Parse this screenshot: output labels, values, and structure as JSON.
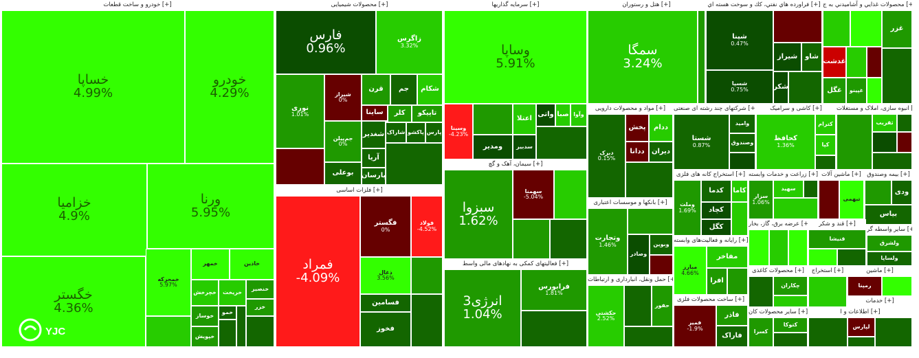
{
  "colors": {
    "bright_green": "#33ff00",
    "green": "#27cc00",
    "mid_green": "#1f9900",
    "dark_green": "#136600",
    "darkest_green": "#0b4d00",
    "red": "#ff1a1a",
    "dark_red": "#660000"
  },
  "sectors": [
    {
      "title": "خودرو و ساخت قطعات [+]"
    },
    {
      "title": "محصولات شیمیایی [+]"
    },
    {
      "title": "سرمایه گذاریها [+]"
    },
    {
      "title": "هتل و رستوران [+]"
    },
    {
      "title": "فراورده هاي نفتي، كك و سوخت هسته اي [+]"
    },
    {
      "title": "محصولات غذايي و آشاميدني به ج [+]"
    },
    {
      "title": "فلزات اساسی [+]"
    },
    {
      "title": "سیمان، آهک و گچ [+]"
    },
    {
      "title": "فعالیتهای کمکی به نهادهای مالی واسط [+]"
    },
    {
      "title": "مواد و محصولات دارویی [+]"
    },
    {
      "title": "شرکتهای چند رشته ای صنعتی [+]"
    },
    {
      "title": "کاشی و سرامیک [+]"
    },
    {
      "title": "انبوه سازی، املاک و مستغلات [+]"
    },
    {
      "title": "بانکها و موسسات اعتباری [+]"
    },
    {
      "title": "استخراج کانه های فلزی [+]"
    },
    {
      "title": "زراعت و خدمات وابسته [+]"
    },
    {
      "title": "ماشین آلات [+]"
    },
    {
      "title": "بیمه وصندوق [+]"
    },
    {
      "title": "رایانه و فعالیت‌های وابسته [+]"
    },
    {
      "title": "عرضه برق، گاز، بخار [+]"
    },
    {
      "title": "قند و شکر [+]"
    },
    {
      "title": "سایر واسطه گر [+]"
    },
    {
      "title": "محصولات کاغذی [+]"
    },
    {
      "title": "استخراج [+]"
    },
    {
      "title": "ماشین [+]"
    },
    {
      "title": "خدمات [+]"
    },
    {
      "title": "حمل ونقل، انبارداری و ارتباطات [+]"
    },
    {
      "title": "ساخت محصولات فلزی [+]"
    },
    {
      "title": "سایر محصولات کان [+]"
    },
    {
      "title": "اطلاعات و ا [+]"
    }
  ],
  "tiles": {
    "khasapa": {
      "name": "خساپا",
      "pct": "4.99%"
    },
    "khodro": {
      "name": "خودرو",
      "pct": "4.29%"
    },
    "khazamia": {
      "name": "خزامیا",
      "pct": "4.9%"
    },
    "varana": {
      "name": "ورنا",
      "pct": "5.95%"
    },
    "khgostar": {
      "name": "خگستر",
      "pct": "4.36%"
    },
    "khamehrka": {
      "name": "خمحرکه",
      "pct": "5.97%"
    },
    "khamehr": {
      "name": "خمهر"
    },
    "khadin": {
      "name": "خاذین"
    },
    "khchrkhesh": {
      "name": "خچرخش"
    },
    "khrikht": {
      "name": "خریخت"
    },
    "khansur": {
      "name": "خنصیر"
    },
    "khavaz": {
      "name": "خوساز"
    },
    "khpeysh": {
      "name": "خپویش"
    },
    "khkhem": {
      "name": "خمو"
    },
    "khzar": {
      "name": "خزر"
    },
    "fars": {
      "name": "فارس",
      "pct": "0.96%"
    },
    "zagros": {
      "name": "زاگرس",
      "pct": "3.32%"
    },
    "noori": {
      "name": "نوری",
      "pct": "1.01%"
    },
    "qarn": {
      "name": "قرن"
    },
    "jam": {
      "name": "جم"
    },
    "shakam": {
      "name": "شکام"
    },
    "sayna": {
      "name": "ساینا"
    },
    "kala": {
      "name": "کلر"
    },
    "tapiko": {
      "name": "تاپیکو"
    },
    "shadid": {
      "name": "شغدیر"
    },
    "sharak": {
      "name": "شاراک"
    },
    "paksh": {
      "name": "پاکشو"
    },
    "parsi": {
      "name": "پارس"
    },
    "arya": {
      "name": "آریا"
    },
    "bualei": {
      "name": "بوعلی"
    },
    "parsan": {
      "name": "پارسان"
    },
    "khfnoori": {
      "name": "جم‌پیلن",
      "pct": "0%"
    },
    "shavan": {
      "name": "شیراز",
      "pct": "0%"
    },
    "vasapa": {
      "name": "وساپا",
      "pct": "5.91%"
    },
    "etela": {
      "name": "اعتلا"
    },
    "vati": {
      "name": "واتی"
    },
    "saba": {
      "name": "صبا"
    },
    "vaava": {
      "name": "وآوا"
    },
    "vamadir": {
      "name": "ومدیر"
    },
    "sdabir": {
      "name": "سدبیر"
    },
    "vsina": {
      "name": "وسینا",
      "pct": "-4.23%"
    },
    "semga": {
      "name": "سمگا",
      "pct": "3.24%"
    },
    "shepena": {
      "name": "شپنا",
      "pct": "0.47%"
    },
    "shiraz": {
      "name": "شیراز"
    },
    "shavoo": {
      "name": "شاو"
    },
    "shesfa": {
      "name": "شسپا",
      "pct": "0.75%"
    },
    "shtran": {
      "name": "شتران"
    },
    "shkr": {
      "name": "شکر"
    },
    "ghaza": {
      "name": "غزر"
    },
    "ghdasht": {
      "name": "غدشت"
    },
    "ghgol": {
      "name": "غگل"
    },
    "ghebeshahr": {
      "name": "غپینو"
    },
    "famrad": {
      "name": "فمراد",
      "pct": "-4.09%"
    },
    "fagostar": {
      "name": "فگستر",
      "pct": "0%"
    },
    "foolad": {
      "name": "فولاد",
      "pct": "-4.52%"
    },
    "fasamin": {
      "name": "فسامین"
    },
    "fokhoz": {
      "name": "فخوز"
    },
    "zaghal": {
      "name": "ذغال",
      "pct": "3.56%"
    },
    "sabzva": {
      "name": "سبزوا",
      "pct": "1.62%"
    },
    "sehmona": {
      "name": "سهمنا",
      "pct": "-5.04%"
    },
    "energy3": {
      "name": "انرژی3",
      "pct": "1.04%"
    },
    "farabours": {
      "name": "فرابورس",
      "pct": "1.81%"
    },
    "dabarak": {
      "name": "دبرک",
      "pct": "0.15%"
    },
    "pakhsh": {
      "name": "پخش"
    },
    "dadam": {
      "name": "ددام"
    },
    "dadana": {
      "name": "ددانا"
    },
    "diran": {
      "name": "دیران"
    },
    "shasta": {
      "name": "شستا",
      "pct": "0.87%"
    },
    "vamid": {
      "name": "وامید"
    },
    "vasandooq": {
      "name": "وصندوق"
    },
    "kehafez": {
      "name": "کحافظ",
      "pct": "1.36%"
    },
    "keram": {
      "name": "کترام"
    },
    "kapa": {
      "name": "کپا"
    },
    "thagrib": {
      "name": "ثقریب"
    },
    "vtejarat": {
      "name": "وتجارت",
      "pct": "1.46%"
    },
    "vebvin": {
      "name": "وبوین"
    },
    "vsaderat": {
      "name": "وصادر"
    },
    "kama": {
      "name": "کاما"
    },
    "kadma": {
      "name": "کدما"
    },
    "kechad": {
      "name": "کچاد"
    },
    "kgol": {
      "name": "کگل"
    },
    "vemelat": {
      "name": "وملت",
      "pct": "1.69%"
    },
    "sahid": {
      "name": "سهید"
    },
    "sezar": {
      "name": "سزار",
      "pct": "1.06%"
    },
    "vedi": {
      "name": "ودی"
    },
    "beyas": {
      "name": "بیاس"
    },
    "tabehmi": {
      "name": "تبهمی"
    },
    "mafakher": {
      "name": "مفاخر"
    },
    "afra": {
      "name": "افرا"
    },
    "mobarez": {
      "name": "مبارز",
      "pct": "4.66%"
    },
    "ghonisha": {
      "name": "قنیشا"
    },
    "vlasapa": {
      "name": "ولساپا"
    },
    "valshagh": {
      "name": "ولشرق"
    },
    "chekaran": {
      "name": "چکاران"
    },
    "ramina": {
      "name": "رمپنا"
    },
    "lapars": {
      "name": "لپارس"
    },
    "hakeshti": {
      "name": "حکشتی",
      "pct": "2.52%"
    },
    "hechfor": {
      "name": "حفور"
    },
    "famir": {
      "name": "فمیر",
      "pct": "-1.9%"
    },
    "fadar": {
      "name": "فاذر"
    },
    "farak": {
      "name": "فاراک"
    },
    "ktova": {
      "name": "کتوکا"
    },
    "kesra": {
      "name": "کسرا"
    }
  }
}
